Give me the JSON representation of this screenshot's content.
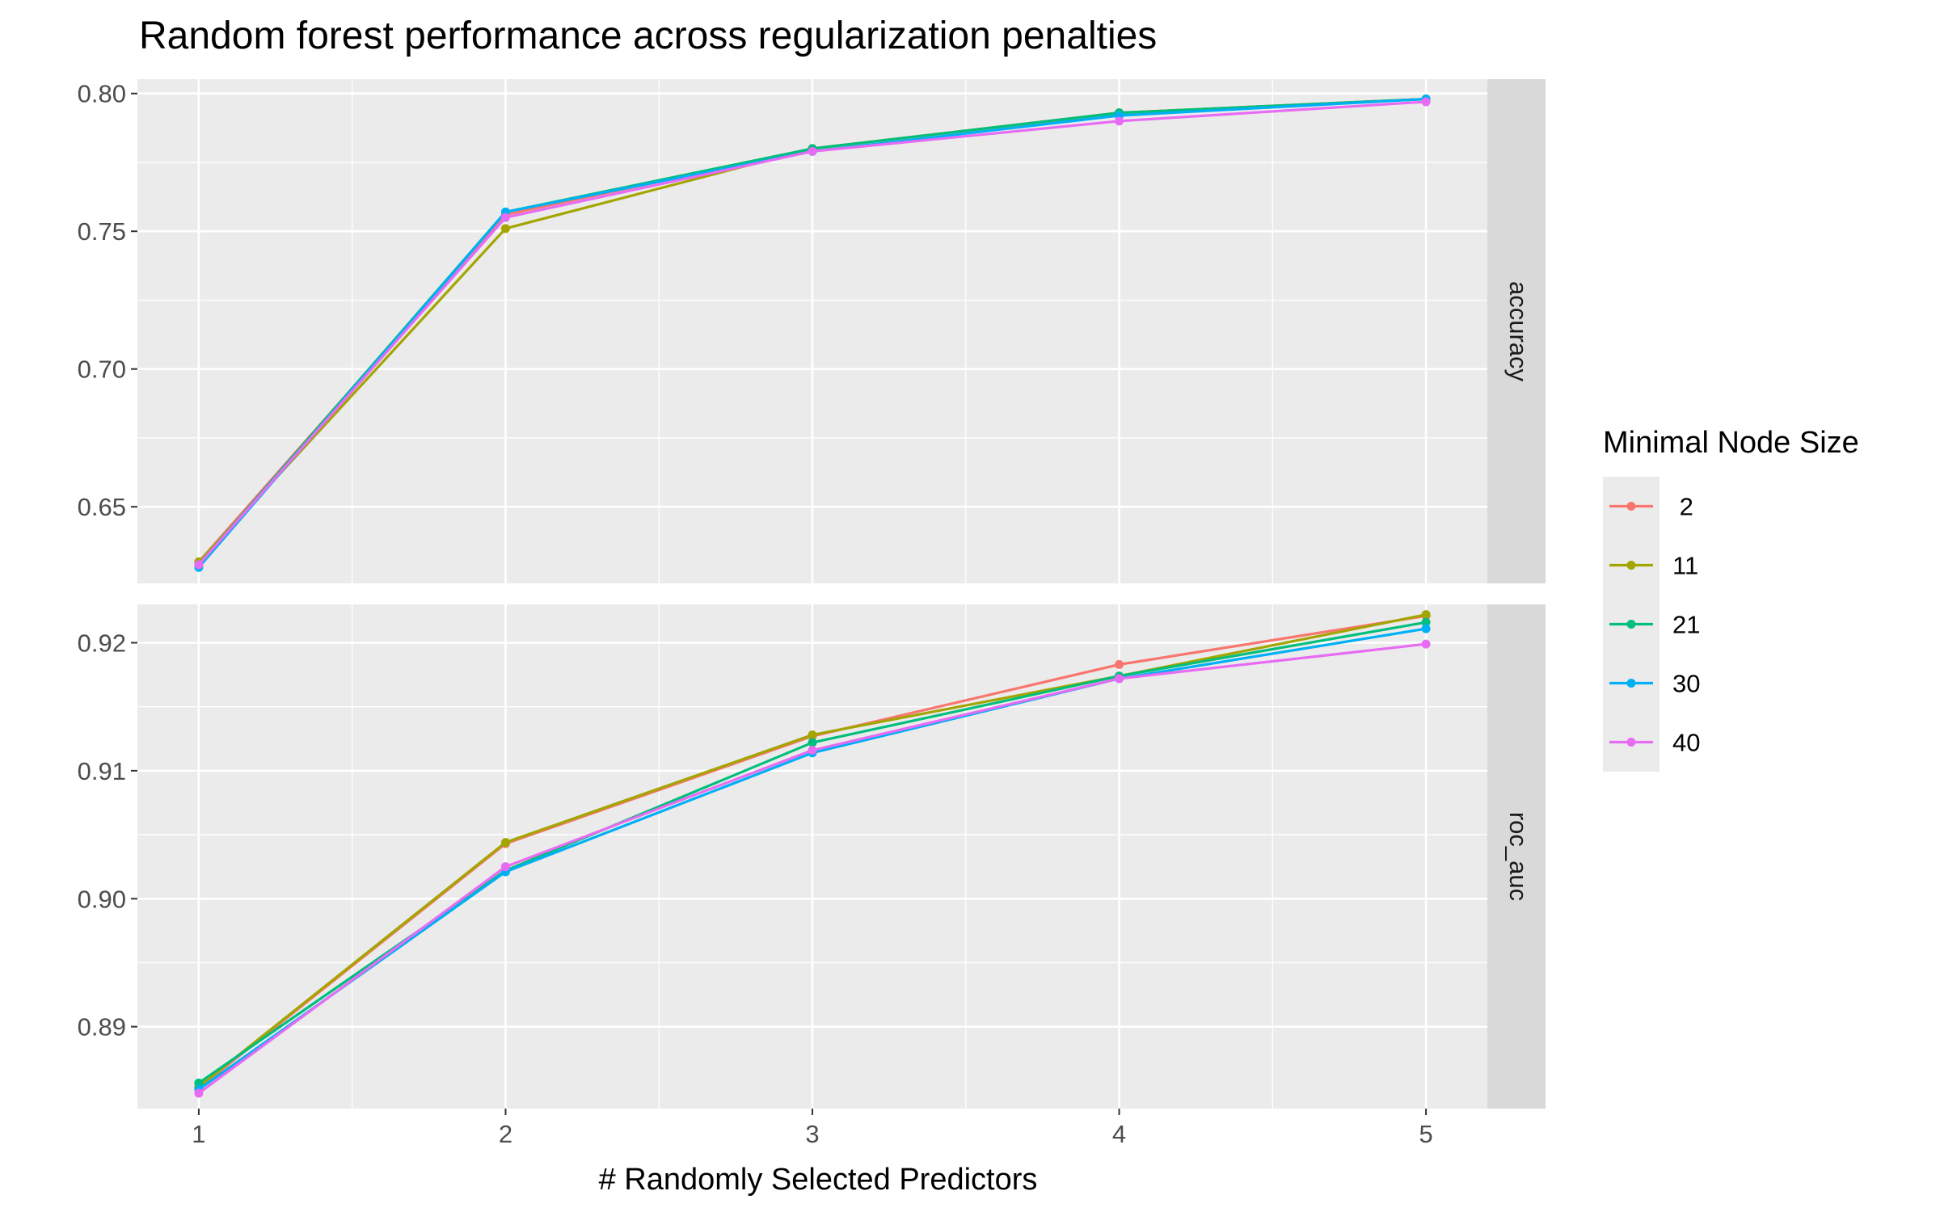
{
  "chart_data": {
    "type": "line",
    "title": "Random forest performance across regularization penalties",
    "xlabel": "# Randomly Selected Predictors",
    "x": [
      1,
      2,
      3,
      4,
      5
    ],
    "xlim": [
      0.8,
      5.2
    ],
    "x_ticks": [
      "1",
      "2",
      "3",
      "4",
      "5"
    ],
    "legend": {
      "title": "Minimal Node Size",
      "placement": "right",
      "items": [
        {
          "label": " 2",
          "color": "#F8766D"
        },
        {
          "label": "11",
          "color": "#A3A500"
        },
        {
          "label": "21",
          "color": "#00BF7D"
        },
        {
          "label": "30",
          "color": "#00B0F6"
        },
        {
          "label": "40",
          "color": "#E76BF3"
        }
      ]
    },
    "background": "#EBEBEB",
    "strip_background": "#D9D9D9",
    "grid": true,
    "panels": [
      {
        "strip": "accuracy",
        "ylim": [
          0.6222,
          0.8052
        ],
        "y_ticks": [
          {
            "value": 0.65,
            "label": "0.65"
          },
          {
            "value": 0.7,
            "label": "0.70"
          },
          {
            "value": 0.75,
            "label": "0.75"
          },
          {
            "value": 0.8,
            "label": "0.80"
          }
        ],
        "series": [
          {
            "name": "2",
            "values": [
              0.63,
              0.756,
              0.78,
              0.793,
              0.798
            ]
          },
          {
            "name": "11",
            "values": [
              0.63,
              0.751,
              0.78,
              0.793,
              0.798
            ]
          },
          {
            "name": "21",
            "values": [
              0.629,
              0.757,
              0.78,
              0.793,
              0.798
            ]
          },
          {
            "name": "30",
            "values": [
              0.628,
              0.757,
              0.779,
              0.792,
              0.798
            ]
          },
          {
            "name": "40",
            "values": [
              0.629,
              0.755,
              0.779,
              0.79,
              0.797
            ]
          }
        ]
      },
      {
        "strip": "roc_auc",
        "ylim": [
          0.8836,
          0.923
        ],
        "y_ticks": [
          {
            "value": 0.89,
            "label": "0.89"
          },
          {
            "value": 0.9,
            "label": "0.90"
          },
          {
            "value": 0.91,
            "label": "0.91"
          },
          {
            "value": 0.92,
            "label": "0.92"
          }
        ],
        "series": [
          {
            "name": "2",
            "values": [
              0.8852,
              0.9043,
              0.9127,
              0.9183,
              0.9221
            ]
          },
          {
            "name": "11",
            "values": [
              0.8853,
              0.9044,
              0.9128,
              0.9174,
              0.9222
            ]
          },
          {
            "name": "21",
            "values": [
              0.8856,
              0.9022,
              0.9122,
              0.9174,
              0.9216
            ]
          },
          {
            "name": "30",
            "values": [
              0.8851,
              0.9021,
              0.9114,
              0.9172,
              0.9211
            ]
          },
          {
            "name": "40",
            "values": [
              0.8848,
              0.9025,
              0.9116,
              0.9172,
              0.9199
            ]
          }
        ]
      }
    ]
  }
}
